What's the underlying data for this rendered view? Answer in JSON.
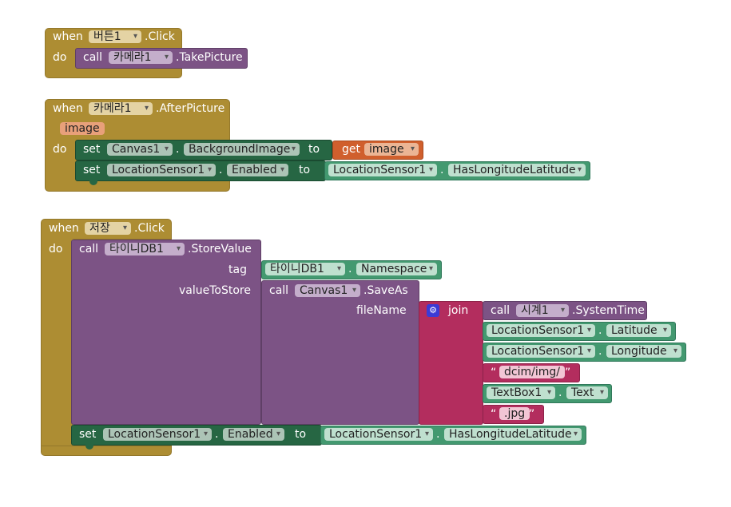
{
  "block1": {
    "when": "when",
    "component": "버튼1",
    "event": ".Click",
    "do": "do",
    "call": "call",
    "call_component": "카메라1",
    "call_method": ".TakePicture"
  },
  "block2": {
    "when": "when",
    "component": "카메라1",
    "event": ".AfterPicture",
    "param": "image",
    "do": "do",
    "set1": {
      "set": "set",
      "component": "Canvas1",
      "dot": ".",
      "property": "BackgroundImage",
      "to": "to",
      "get": "get",
      "get_var": "image"
    },
    "set2": {
      "set": "set",
      "component": "LocationSensor1",
      "dot": ".",
      "property": "Enabled",
      "to": "to",
      "value_component": "LocationSensor1",
      "value_dot": ".",
      "value_property": "HasLongitudeLatitude"
    }
  },
  "block3": {
    "when": "when",
    "component": "저장",
    "event": ".Click",
    "do": "do",
    "call": "call",
    "call_component": "타이니DB1",
    "call_method": ".StoreValue",
    "tag_label": "tag",
    "tag_component": "타이니DB1",
    "tag_dot": ".",
    "tag_property": "Namespace",
    "value_label": "valueToStore",
    "saveas_call": "call",
    "saveas_component": "Canvas1",
    "saveas_method": ".SaveAs",
    "filename_label": "fileName",
    "join": "join",
    "join_items": {
      "time_call": "call",
      "time_component": "시계1",
      "time_method": ".SystemTime",
      "lat_component": "LocationSensor1",
      "lat_dot": ".",
      "lat_property": "Latitude",
      "lon_component": "LocationSensor1",
      "lon_dot": ".",
      "lon_property": "Longitude",
      "str1": "dcim/img/",
      "tb_component": "TextBox1",
      "tb_dot": ".",
      "tb_property": "Text",
      "str2": ".jpg",
      "quote_open": "“",
      "quote_close": "”"
    },
    "set": {
      "set": "set",
      "component": "LocationSensor1",
      "dot": ".",
      "property": "Enabled",
      "to": "to",
      "value_component": "LocationSensor1",
      "value_dot": ".",
      "value_property": "HasLongitudeLatitude"
    }
  },
  "colors": {
    "event": "#ad8d33",
    "procedure": "#7c5385",
    "setter": "#266643",
    "getter": "#439970",
    "variable": "#d05f2d",
    "text": "#b32d5e"
  }
}
